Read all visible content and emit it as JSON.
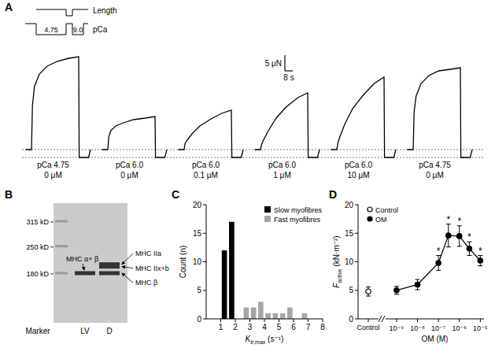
{
  "chart_data": [
    {
      "type": "trace",
      "panel": "A",
      "protocol": {
        "length_label": "Length",
        "pca_label": "pCa",
        "pca_steps": [
          "4.75",
          "9.0"
        ]
      },
      "scale_bar": {
        "force": 5,
        "force_label": "5 μN",
        "time": 8,
        "time_label": "8 s"
      },
      "ref_lines": [
        0,
        -2.5
      ],
      "t": [
        -6,
        0,
        1,
        3,
        8,
        16,
        26,
        38,
        48,
        48.5,
        52,
        58,
        60
      ],
      "traces": [
        {
          "pca": "pCa 4.75",
          "om": "0 μM",
          "force": [
            0,
            0,
            14,
            20,
            24,
            26.5,
            28,
            29,
            29.5,
            -2.5,
            -2.5,
            -2.5,
            0
          ]
        },
        {
          "pca": "pCa 6.0",
          "om": "0 μM",
          "force": [
            0,
            0,
            4,
            6,
            7.5,
            8.5,
            9.5,
            10,
            10.5,
            -2.5,
            -2.5,
            -2.5,
            0
          ]
        },
        {
          "pca": "pCa 6.0",
          "om": "0.1 μM",
          "force": [
            0,
            0,
            2,
            3,
            5,
            7.5,
            9.5,
            11.5,
            12.5,
            -2.5,
            -2.5,
            -2.5,
            0
          ]
        },
        {
          "pca": "pCa 6.0",
          "om": "1 μM",
          "force": [
            0,
            0,
            1.5,
            3,
            6,
            10,
            13.5,
            16.5,
            18,
            -2.5,
            -2.5,
            -2.5,
            0
          ]
        },
        {
          "pca": "pCa 6.0",
          "om": "10 μM",
          "force": [
            0,
            0,
            2,
            4,
            8,
            13,
            17,
            21,
            23,
            -2.5,
            -2.5,
            -2.5,
            0
          ]
        },
        {
          "pca": "pCa 4.75",
          "om": "0 μM",
          "force": [
            0,
            0,
            12,
            17,
            21,
            23.5,
            25,
            25.5,
            26,
            -2.5,
            -2.5,
            -2.5,
            0
          ]
        }
      ]
    },
    {
      "type": "gel",
      "panel": "B",
      "ylim": [
        364,
        53
      ],
      "yticks": [
        {
          "value": 315,
          "label": "315 kD"
        },
        {
          "value": 250,
          "label": "250 kD"
        },
        {
          "value": 180,
          "label": "180 kD"
        }
      ],
      "lanes": [
        {
          "label": "Marker",
          "bands": [
            {
              "kD": 315
            },
            {
              "kD": 250
            },
            {
              "kD": 180
            }
          ]
        },
        {
          "label": "LV",
          "bands": [
            {
              "kD": 182,
              "label": "MHC α+ β"
            }
          ]
        },
        {
          "label": "D",
          "bands": [
            {
              "kD": 205,
              "label": "MHC IIa"
            },
            {
              "kD": 199,
              "label": "MHC IIx+b"
            },
            {
              "kD": 182,
              "label": "MHC β"
            }
          ]
        }
      ]
    },
    {
      "type": "bar",
      "panel": "C",
      "ylabel": "Count (n)",
      "xlabel": {
        "main": "K",
        "sub": "tr,max",
        "rest": " (s⁻¹)"
      },
      "xlim": [
        0,
        8
      ],
      "xticks": [
        1,
        2,
        3,
        4,
        5,
        6,
        7,
        8
      ],
      "ylim": [
        0,
        20
      ],
      "yticks": [
        0,
        5,
        10,
        15,
        20
      ],
      "legend": "upper right",
      "series": [
        {
          "name": "Slow myofibres",
          "color": "#000000",
          "x": [
            1.25,
            1.75
          ],
          "values": [
            12,
            17
          ]
        },
        {
          "name": "Fast myofibres",
          "color": "#a6a6a6",
          "x": [
            2.75,
            3.25,
            3.75,
            4.25,
            4.75,
            5.25,
            5.75,
            6.75
          ],
          "values": [
            2,
            2,
            3,
            1,
            1,
            1,
            2,
            1
          ]
        }
      ]
    },
    {
      "type": "line",
      "panel": "D",
      "ylabel": {
        "main": "F",
        "sub": "active",
        "rest": " (kN·m⁻²)"
      },
      "xlabel": "OM (M)",
      "log": "x",
      "ylim": [
        0,
        20
      ],
      "yticks": [
        0,
        5,
        10,
        15,
        20
      ],
      "xlim": [
        3e-10,
        1.5e-05
      ],
      "xticks": [
        {
          "value": 1e-09,
          "label": "10⁻⁹"
        },
        {
          "value": 1e-08,
          "label": "10⁻⁸"
        },
        {
          "value": 1e-07,
          "label": "10⁻⁷"
        },
        {
          "value": 1e-06,
          "label": "10⁻⁶"
        },
        {
          "value": 1e-05,
          "label": "10⁻⁵"
        }
      ],
      "legend": "upper left",
      "control": {
        "name": "Control",
        "category": "Control",
        "color": "#000000",
        "marker": "open-circle",
        "value": 4.8,
        "error": 0.8
      },
      "series": [
        {
          "name": "OM",
          "color": "#000000",
          "marker": "filled-circle",
          "x": [
            1e-09,
            1e-08,
            1e-07,
            3e-07,
            1e-06,
            3e-06,
            1e-05
          ],
          "values": [
            5.0,
            6.0,
            9.8,
            14.6,
            14.5,
            12.3,
            10.2
          ],
          "errors": [
            0.7,
            0.9,
            1.3,
            2.0,
            1.8,
            1.2,
            0.9
          ]
        }
      ],
      "annotation": {
        "text": "*",
        "points": [
          2,
          3,
          4,
          5,
          6
        ]
      }
    }
  ]
}
